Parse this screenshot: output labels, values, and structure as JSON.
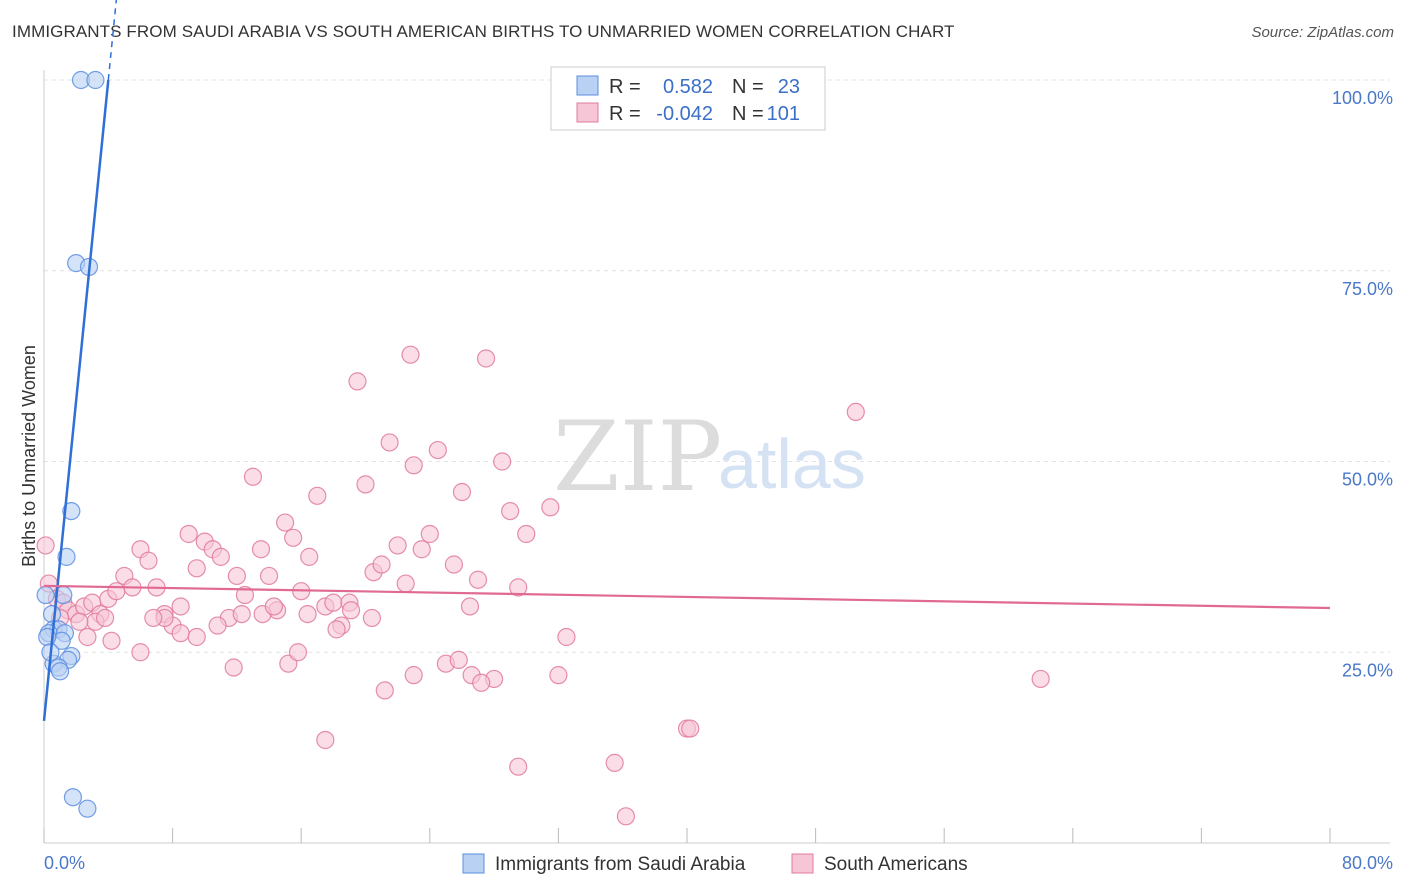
{
  "header": {
    "title": "IMMIGRANTS FROM SAUDI ARABIA VS SOUTH AMERICAN BIRTHS TO UNMARRIED WOMEN CORRELATION CHART",
    "source": "Source: ZipAtlas.com"
  },
  "watermark": {
    "zip": "ZIP",
    "atlas": "atlas"
  },
  "stats": {
    "r_label": "R =",
    "n_label": "N =",
    "rows": [
      {
        "series": "Immigrants from Saudi Arabia",
        "r": "0.582",
        "n": "23",
        "color": "#5b8ee0",
        "fill": "#b9d1f3"
      },
      {
        "series": "South Americans",
        "r": "-0.042",
        "n": "101",
        "color": "#e07a9e",
        "fill": "#f7c6d6"
      }
    ]
  },
  "chart_data": {
    "type": "scatter",
    "title": "IMMIGRANTS FROM SAUDI ARABIA VS SOUTH AMERICAN BIRTHS TO UNMARRIED WOMEN CORRELATION CHART",
    "xlabel": "",
    "ylabel": "Births to Unmarried Women",
    "xlim": [
      0,
      80
    ],
    "ylim": [
      0,
      100
    ],
    "x_tick_labels": [
      {
        "value": 0,
        "label": "0.0%"
      },
      {
        "value": 80,
        "label": "80.0%"
      }
    ],
    "y_tick_labels": [
      {
        "value": 25,
        "label": "25.0%"
      },
      {
        "value": 50,
        "label": "50.0%"
      },
      {
        "value": 75,
        "label": "75.0%"
      },
      {
        "value": 100,
        "label": "100.0%"
      }
    ],
    "x_minor_ticks": [
      0,
      8,
      16,
      24,
      32,
      40,
      48,
      56,
      64,
      72,
      80
    ],
    "legend": [
      "Immigrants from Saudi Arabia",
      "South Americans"
    ],
    "series": [
      {
        "name": "Immigrants from Saudi Arabia",
        "color": "#5b8ee0",
        "fill": "#b9d1f3",
        "points": [
          [
            2.3,
            100
          ],
          [
            3.2,
            100
          ],
          [
            2.0,
            76
          ],
          [
            2.8,
            75.5
          ],
          [
            1.7,
            43.5
          ],
          [
            1.4,
            37.5
          ],
          [
            1.2,
            32.5
          ],
          [
            0.5,
            30
          ],
          [
            0.6,
            28
          ],
          [
            0.9,
            28
          ],
          [
            0.3,
            27.5
          ],
          [
            1.3,
            27.5
          ],
          [
            1.1,
            26.5
          ],
          [
            1.7,
            24.5
          ],
          [
            1.5,
            24
          ],
          [
            0.6,
            23.5
          ],
          [
            0.9,
            23
          ],
          [
            1.0,
            22.5
          ],
          [
            0.1,
            32.5
          ],
          [
            0.2,
            27
          ],
          [
            0.4,
            25
          ],
          [
            1.8,
            6
          ],
          [
            2.7,
            4.5
          ]
        ],
        "trend": {
          "x0": 0,
          "y0": 16,
          "x1": 4,
          "y1": 100,
          "solid_until_x": 4.0,
          "dashed_until_x": 4.75
        }
      },
      {
        "name": "South Americans",
        "color": "#e07a9e",
        "fill": "#f7c6d6",
        "points": [
          [
            0.1,
            39
          ],
          [
            0.3,
            34
          ],
          [
            0.8,
            32
          ],
          [
            1.2,
            31.5
          ],
          [
            1.5,
            30.5
          ],
          [
            2.0,
            30
          ],
          [
            2.5,
            31
          ],
          [
            3.0,
            31.5
          ],
          [
            3.5,
            30
          ],
          [
            4.0,
            32
          ],
          [
            4.5,
            33
          ],
          [
            5.0,
            35
          ],
          [
            5.5,
            33.5
          ],
          [
            6.0,
            38.5
          ],
          [
            6.5,
            37
          ],
          [
            7.0,
            33.5
          ],
          [
            7.5,
            30
          ],
          [
            8.0,
            28.5
          ],
          [
            8.5,
            31
          ],
          [
            9.0,
            40.5
          ],
          [
            9.5,
            36
          ],
          [
            10.0,
            39.5
          ],
          [
            10.5,
            38.5
          ],
          [
            11.0,
            37.5
          ],
          [
            11.5,
            29.5
          ],
          [
            12.0,
            35
          ],
          [
            12.5,
            32.5
          ],
          [
            13.0,
            48
          ],
          [
            13.5,
            38.5
          ],
          [
            14.0,
            35
          ],
          [
            14.5,
            30.5
          ],
          [
            15.0,
            42
          ],
          [
            15.5,
            40
          ],
          [
            16.0,
            33
          ],
          [
            16.5,
            37.5
          ],
          [
            17.0,
            45.5
          ],
          [
            17.5,
            31
          ],
          [
            18.0,
            31.5
          ],
          [
            18.5,
            28.5
          ],
          [
            19.0,
            31.5
          ],
          [
            19.5,
            60.5
          ],
          [
            20.0,
            47
          ],
          [
            20.5,
            35.5
          ],
          [
            21.0,
            36.5
          ],
          [
            21.5,
            52.5
          ],
          [
            22.0,
            39
          ],
          [
            22.5,
            34
          ],
          [
            22.8,
            64
          ],
          [
            23.0,
            49.5
          ],
          [
            23.5,
            38.5
          ],
          [
            24.0,
            40.5
          ],
          [
            24.5,
            51.5
          ],
          [
            25.0,
            23.5
          ],
          [
            25.5,
            36.5
          ],
          [
            26.0,
            46
          ],
          [
            26.5,
            31
          ],
          [
            27.0,
            34.5
          ],
          [
            27.5,
            63.5
          ],
          [
            28.0,
            21.5
          ],
          [
            28.5,
            50
          ],
          [
            29.0,
            43.5
          ],
          [
            29.5,
            33.5
          ],
          [
            30.0,
            40.5
          ],
          [
            31.5,
            44
          ],
          [
            32.0,
            22
          ],
          [
            32.5,
            27
          ],
          [
            6.0,
            25
          ],
          [
            7.5,
            29.5
          ],
          [
            9.5,
            27
          ],
          [
            3.2,
            29
          ],
          [
            2.7,
            27
          ],
          [
            4.2,
            26.5
          ],
          [
            8.5,
            27.5
          ],
          [
            11.8,
            23
          ],
          [
            15.2,
            23.5
          ],
          [
            15.8,
            25
          ],
          [
            18.2,
            28
          ],
          [
            21.2,
            20
          ],
          [
            23.0,
            22
          ],
          [
            25.8,
            24
          ],
          [
            26.6,
            22
          ],
          [
            27.2,
            21
          ],
          [
            17.5,
            13.5
          ],
          [
            29.5,
            10
          ],
          [
            35.5,
            10.5
          ],
          [
            36.2,
            3.5
          ],
          [
            40.0,
            15
          ],
          [
            40.2,
            15
          ],
          [
            50.5,
            56.5
          ],
          [
            62.0,
            21.5
          ],
          [
            6.8,
            29.5
          ],
          [
            10.8,
            28.5
          ],
          [
            12.3,
            30
          ],
          [
            13.6,
            30
          ],
          [
            14.3,
            31
          ],
          [
            16.4,
            30
          ],
          [
            19.1,
            30.5
          ],
          [
            20.4,
            29.5
          ],
          [
            1.0,
            29.5
          ],
          [
            2.2,
            29
          ],
          [
            3.8,
            29.5
          ]
        ],
        "trend": {
          "x0": 0,
          "y0": 33.7,
          "x1": 80,
          "y1": 30.8
        }
      }
    ]
  }
}
